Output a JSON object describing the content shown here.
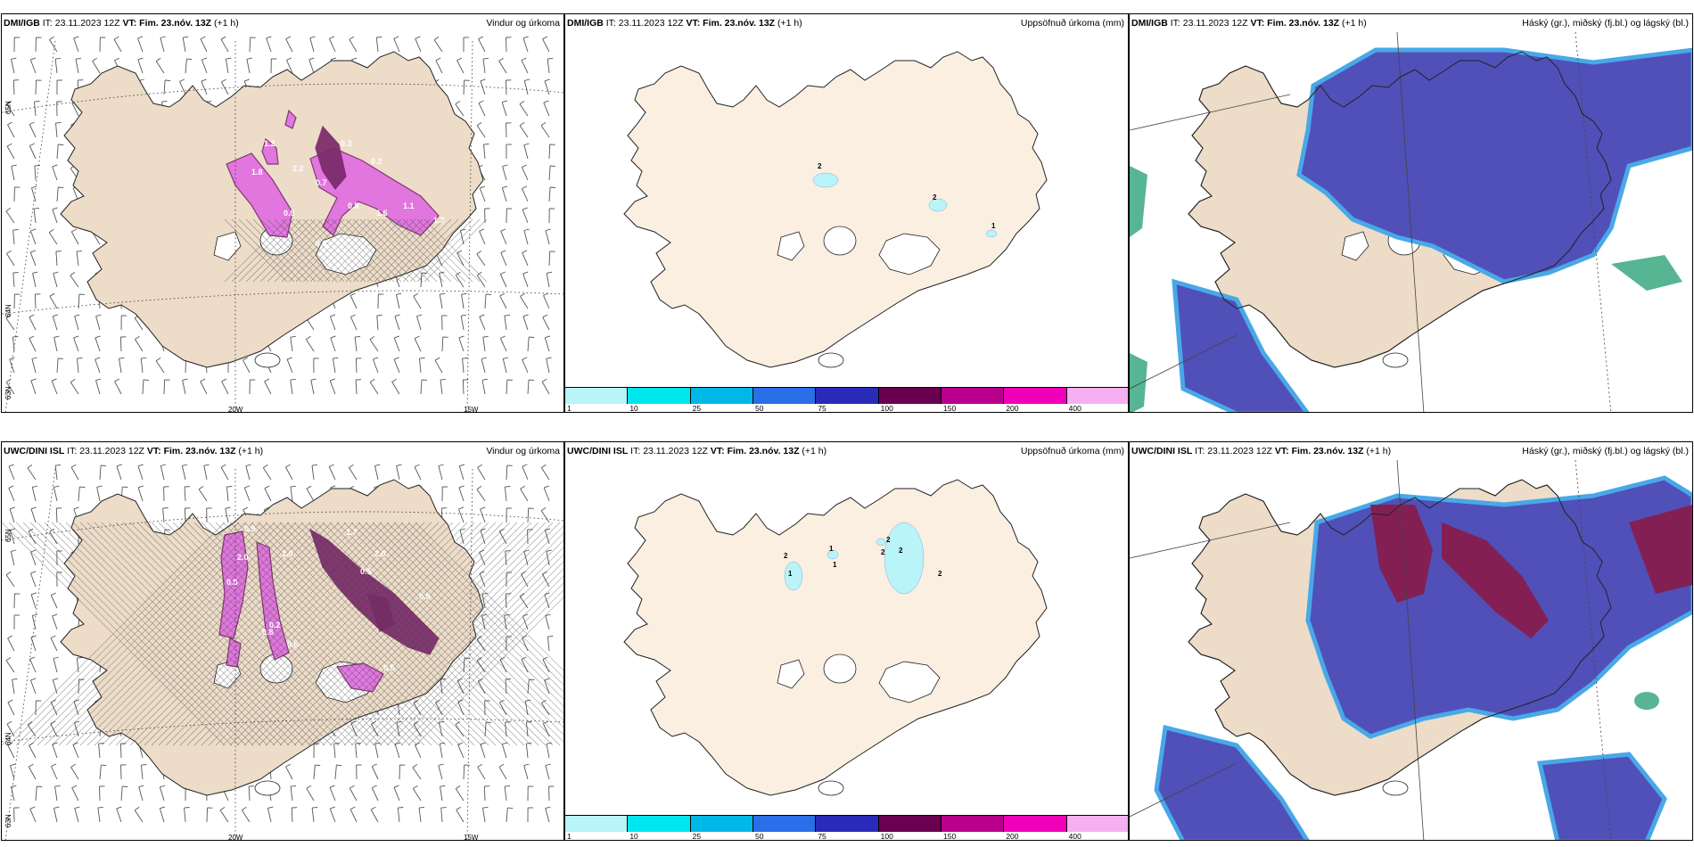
{
  "rows": [
    {
      "model": "DMI/IGB",
      "it_label": "IT:",
      "it_value": "23.11.2023 12Z",
      "vt_label": "VT:",
      "vt_value": "Fim. 23.nóv. 13Z",
      "step": "(+1 h)"
    },
    {
      "model": "UWC/DINI ISL",
      "it_label": "IT:",
      "it_value": "23.11.2023 12Z",
      "vt_label": "VT:",
      "vt_value": "Fim. 23.nóv. 13Z",
      "step": "(+1 h)"
    }
  ],
  "panel_titles": {
    "wind": "Vindur og úrkoma",
    "accum": "Uppsöfnuð úrkoma (mm)",
    "cloud": "Háský (gr.), miðský (fj.bl.) og lágský (bl.)"
  },
  "axis_labels": {
    "lat_65n": "65N",
    "lat_64n": "64N",
    "lat_63n": "63N",
    "lon_20w": "20W",
    "lon_15w": "15W"
  },
  "legend": {
    "ticks": [
      "1",
      "10",
      "25",
      "50",
      "75",
      "100",
      "150",
      "200",
      "400"
    ],
    "colors": [
      "#b8f4f8",
      "#00e6ee",
      "#00b8e8",
      "#2a6ee8",
      "#2a2ab8",
      "#6a0050",
      "#b8008c",
      "#f000b8",
      "#f4b0f0"
    ]
  },
  "annotations": {
    "top_wind": [
      "1.2",
      "1.8",
      "2.2",
      "0.7",
      "0.8",
      "1.6",
      "1.1",
      "1.3",
      "0.9",
      "0.2",
      "0.3",
      "0.8"
    ],
    "top_accum": [
      "2",
      "2",
      "1"
    ],
    "bottom_wind": [
      "0.9",
      "2.0",
      "1.0",
      "0.5",
      "1.7",
      "0.8",
      "2.0",
      "0.5",
      "0.9",
      "0.6",
      "0.5",
      "0.2"
    ],
    "bottom_accum": [
      "1",
      "2",
      "2",
      "2",
      "1",
      "2",
      "2",
      "1"
    ]
  },
  "colors": {
    "land": "#ecdcc8",
    "land_light": "#fbefe2",
    "precip": "#e06ee0",
    "precip_dark": "#7a2a6a",
    "cloud_high": "#5050b8",
    "cloud_high_edge": "#48a8e8",
    "cloud_mid": "#8a1a48",
    "cloud_low": "#3aa880"
  }
}
